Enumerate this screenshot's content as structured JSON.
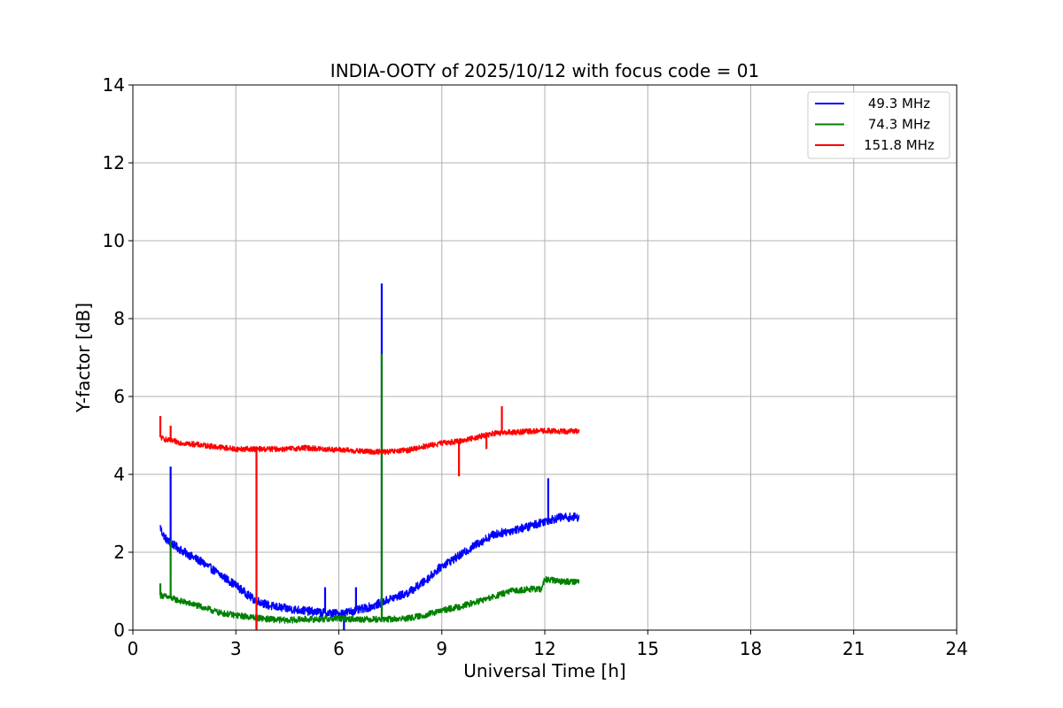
{
  "chart_data": {
    "type": "line",
    "title": "INDIA-OOTY of 2025/10/12 with focus code = 01",
    "xlabel": "Universal Time [h]",
    "ylabel": "Y-factor [dB]",
    "xlim": [
      0,
      24
    ],
    "ylim": [
      0,
      14
    ],
    "xticks": [
      0,
      3,
      6,
      9,
      12,
      15,
      18,
      21,
      24
    ],
    "yticks": [
      0,
      2,
      4,
      6,
      8,
      10,
      12,
      14
    ],
    "grid": true,
    "legend_position": "top-right",
    "series": [
      {
        "name": "49.3 MHz",
        "color": "#0000ff",
        "noise": 0.11,
        "x": [
          0.8,
          0.85,
          1.0,
          1.5,
          2.0,
          2.5,
          3.0,
          3.5,
          4.0,
          4.5,
          5.0,
          5.5,
          6.0,
          6.5,
          7.0,
          7.5,
          8.0,
          8.5,
          9.0,
          9.5,
          10.0,
          10.5,
          11.0,
          11.5,
          12.0,
          12.5,
          13.0
        ],
        "y": [
          2.65,
          2.5,
          2.3,
          2.0,
          1.75,
          1.45,
          1.15,
          0.8,
          0.62,
          0.55,
          0.5,
          0.45,
          0.42,
          0.5,
          0.62,
          0.8,
          0.95,
          1.25,
          1.65,
          1.9,
          2.2,
          2.45,
          2.55,
          2.65,
          2.8,
          2.9,
          2.9
        ],
        "spikes": [
          {
            "x": 1.1,
            "y": 4.2
          },
          {
            "x": 5.6,
            "y": 1.1
          },
          {
            "x": 6.15,
            "y": 0.0
          },
          {
            "x": 6.5,
            "y": 1.1
          },
          {
            "x": 7.25,
            "y": 8.9
          },
          {
            "x": 12.1,
            "y": 3.9
          }
        ]
      },
      {
        "name": "74.3 MHz",
        "color": "#008000",
        "noise": 0.08,
        "x": [
          0.8,
          1.0,
          1.5,
          2.0,
          2.5,
          3.0,
          3.5,
          4.0,
          4.5,
          5.0,
          5.5,
          6.0,
          6.5,
          7.0,
          7.5,
          8.0,
          8.5,
          9.0,
          9.5,
          10.0,
          10.5,
          11.0,
          11.5,
          11.9,
          12.0,
          12.5,
          13.0
        ],
        "y": [
          0.9,
          0.85,
          0.72,
          0.6,
          0.45,
          0.38,
          0.33,
          0.28,
          0.25,
          0.28,
          0.28,
          0.3,
          0.28,
          0.28,
          0.28,
          0.3,
          0.38,
          0.5,
          0.6,
          0.72,
          0.85,
          1.0,
          1.05,
          1.05,
          1.3,
          1.25,
          1.25
        ],
        "spikes": [
          {
            "x": 0.8,
            "y": 1.2
          },
          {
            "x": 1.1,
            "y": 2.3
          },
          {
            "x": 3.6,
            "y": 0.05
          },
          {
            "x": 7.25,
            "y": 7.1
          }
        ]
      },
      {
        "name": "151.8 MHz",
        "color": "#ff0000",
        "noise": 0.07,
        "x": [
          0.8,
          1.0,
          1.5,
          2.0,
          2.5,
          3.0,
          3.5,
          4.0,
          4.5,
          5.0,
          5.5,
          6.0,
          6.5,
          7.0,
          7.5,
          8.0,
          8.5,
          9.0,
          9.5,
          10.0,
          10.5,
          11.0,
          11.5,
          12.0,
          12.5,
          13.0
        ],
        "y": [
          4.95,
          4.88,
          4.8,
          4.75,
          4.7,
          4.65,
          4.65,
          4.65,
          4.65,
          4.68,
          4.65,
          4.63,
          4.6,
          4.58,
          4.58,
          4.62,
          4.72,
          4.8,
          4.85,
          4.95,
          5.05,
          5.08,
          5.1,
          5.12,
          5.1,
          5.12
        ],
        "spikes": [
          {
            "x": 0.8,
            "y": 5.5
          },
          {
            "x": 1.1,
            "y": 5.25
          },
          {
            "x": 3.6,
            "y": 0.0
          },
          {
            "x": 9.5,
            "y": 3.95
          },
          {
            "x": 10.3,
            "y": 4.65
          },
          {
            "x": 10.75,
            "y": 5.75
          }
        ]
      }
    ]
  }
}
